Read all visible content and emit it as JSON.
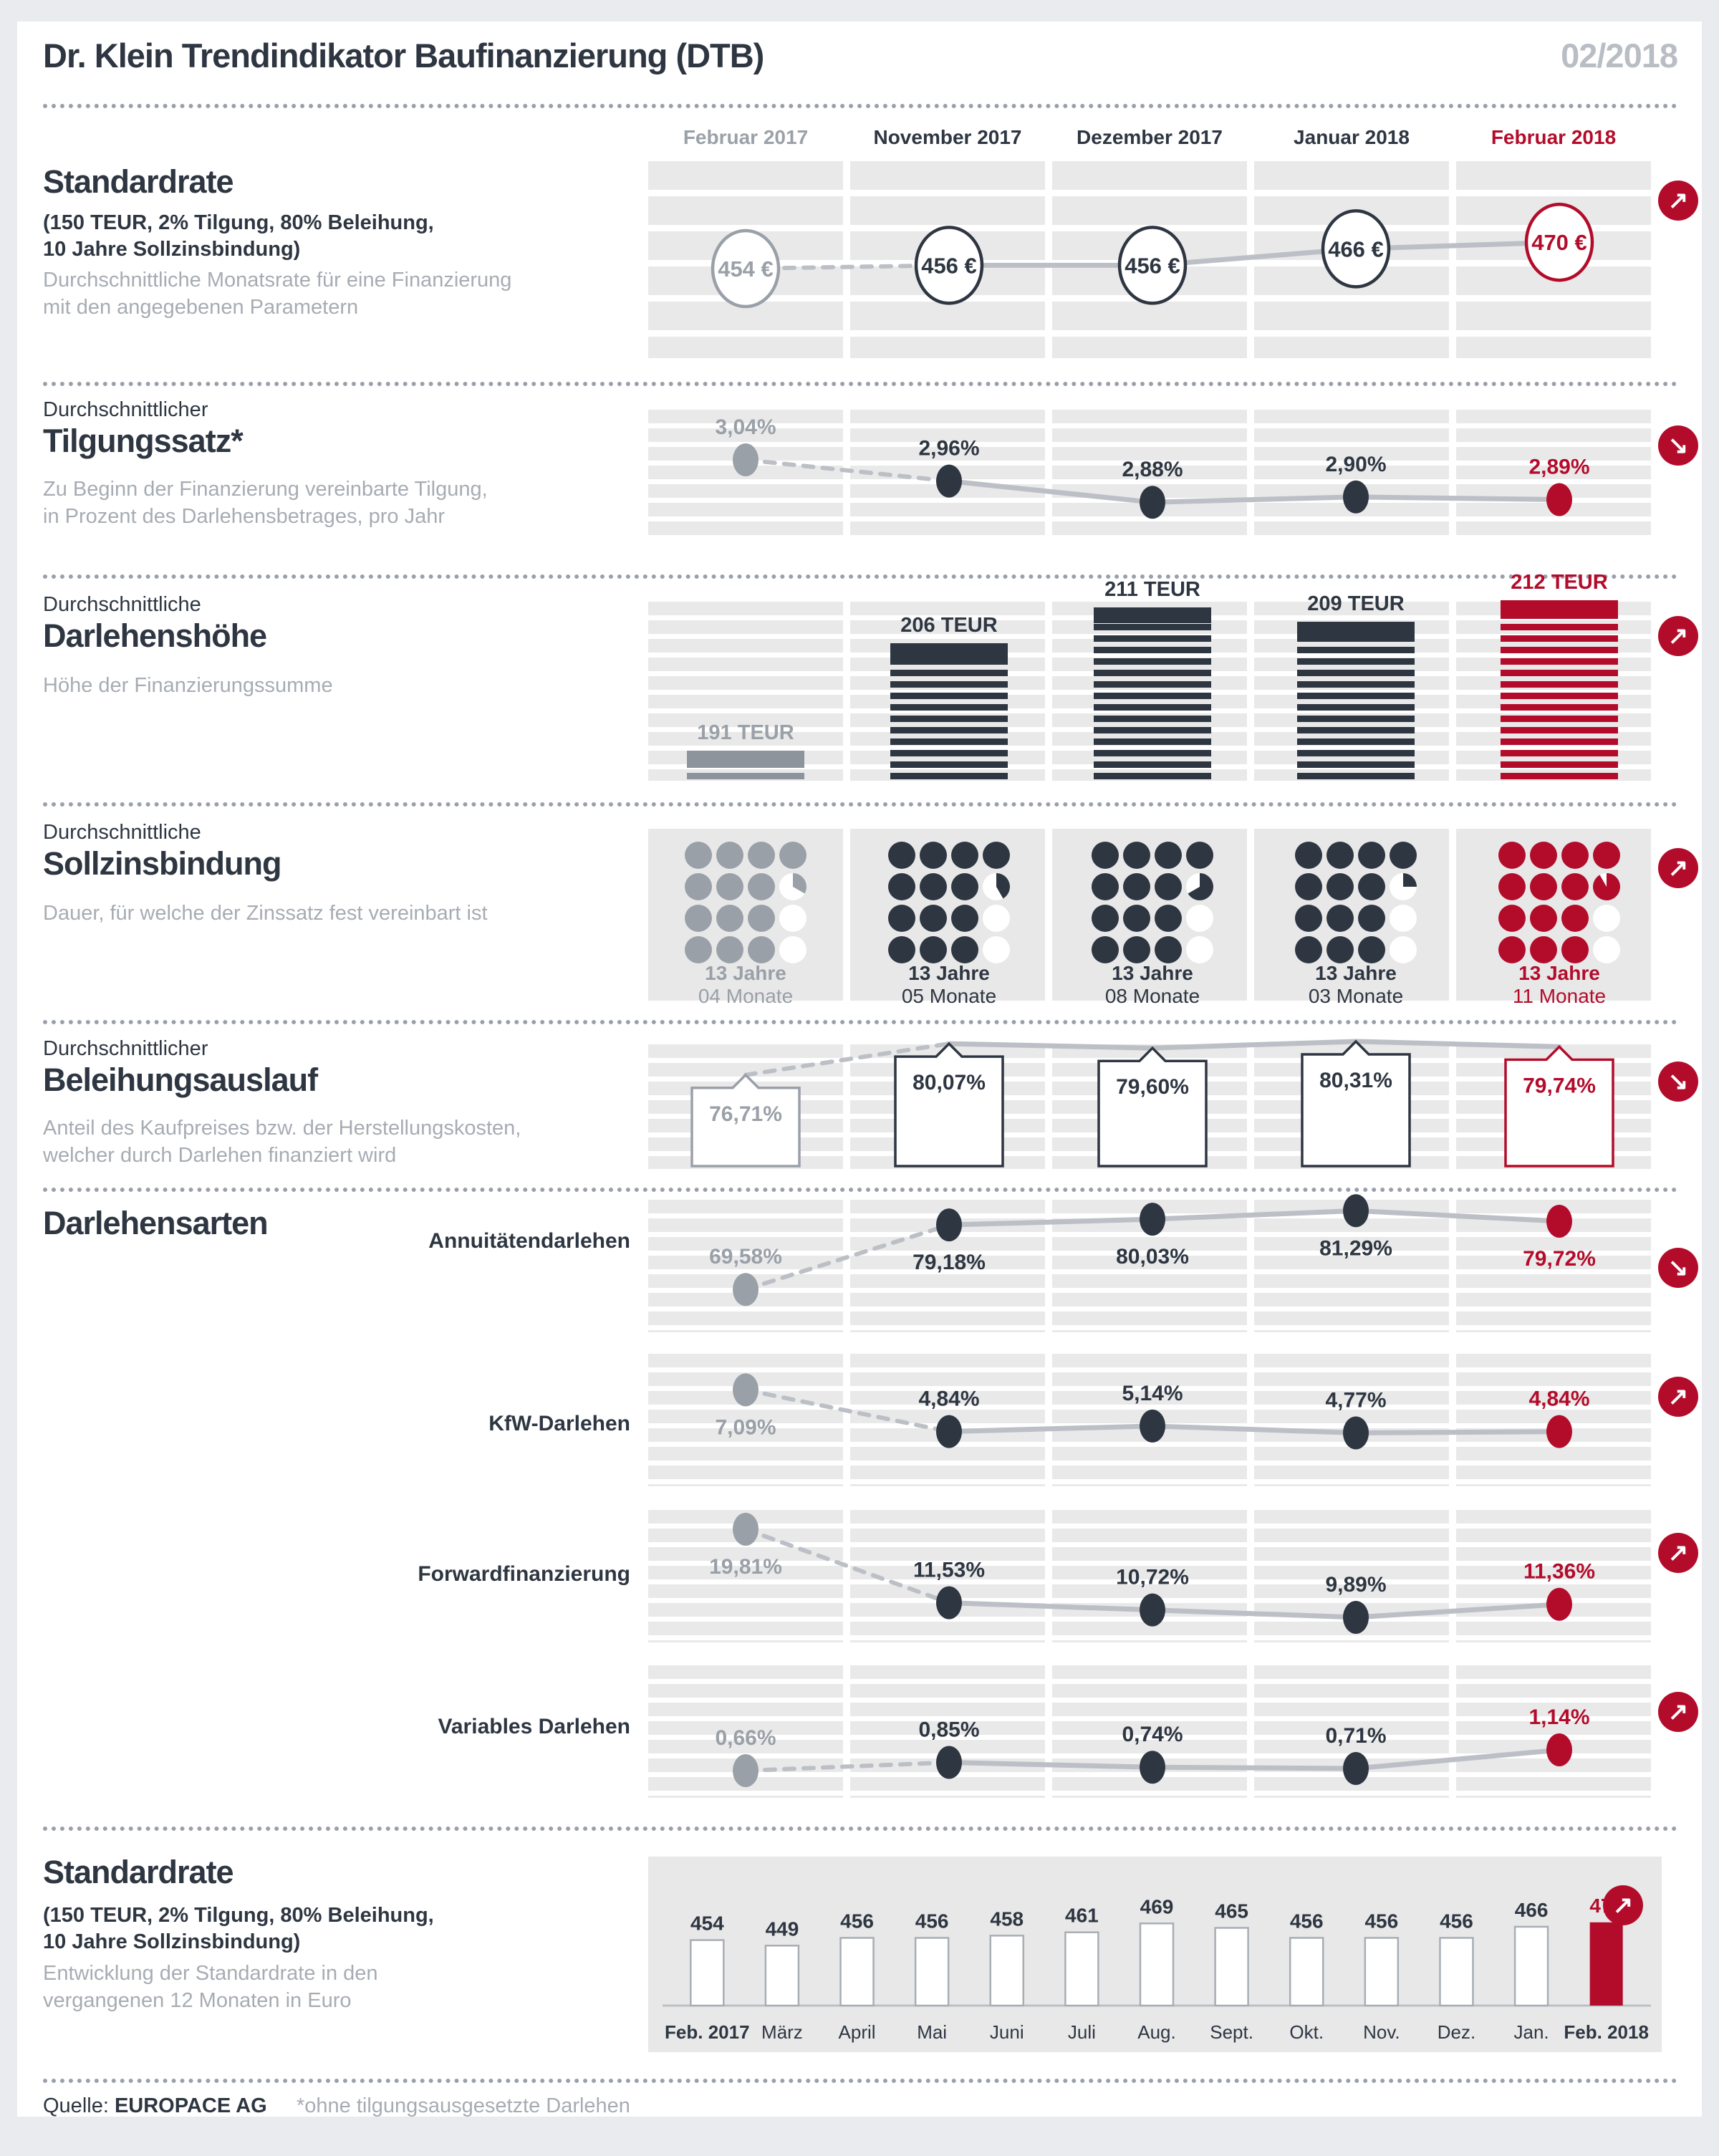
{
  "page": {
    "title": "Dr. Klein Trendindikator Baufinanzierung (DTB)",
    "issue": "02/2018"
  },
  "columns": [
    "Februar 2017",
    "November 2017",
    "Dezember 2017",
    "Januar 2018",
    "Februar 2018"
  ],
  "colors": {
    "dark": "#2e3642",
    "gray": "#9aa0a8",
    "red": "#b30c2b",
    "line": "#bcc0c6",
    "gray_bar": "#8e949c",
    "panel": "#e8e8e8"
  },
  "sections": {
    "standardrate": {
      "title": "Standardrate",
      "note_line1": "(150 TEUR, 2% Tilgung, 80% Beleihung,",
      "note_line2": "10 Jahre Sollzinsbindung)",
      "desc_line1": "Durchschnittliche Monatsrate für eine Finanzierung",
      "desc_line2": "mit den angegebenen Parametern"
    },
    "tilgungssatz": {
      "pretitle": "Durchschnittlicher",
      "title": "Tilgungssatz*",
      "desc_line1": "Zu Beginn der Finanzierung vereinbarte Tilgung,",
      "desc_line2": "in Prozent des Darlehensbetrages, pro Jahr"
    },
    "darlehenshoehe": {
      "pretitle": "Durchschnittliche",
      "title": "Darlehenshöhe",
      "desc_line1": "Höhe der Finanzierungssumme"
    },
    "sollzinsbindung": {
      "pretitle": "Durchschnittliche",
      "title": "Sollzinsbindung",
      "desc_line1": "Dauer, für welche der Zinssatz fest vereinbart ist"
    },
    "beleihungsauslauf": {
      "pretitle": "Durchschnittlicher",
      "title": "Beleihungsauslauf",
      "desc_line1": "Anteil des Kaufpreises bzw. der Herstellungskosten,",
      "desc_line2": "welcher durch Darlehen finanziert wird"
    },
    "darlehensarten": {
      "title": "Darlehensarten"
    },
    "standardrate12": {
      "title": "Standardrate",
      "note_line1": "(150 TEUR, 2% Tilgung, 80% Beleihung,",
      "note_line2": "10 Jahre Sollzinsbindung)",
      "desc_line1": "Entwicklung der Standardrate in den",
      "desc_line2": "vergangenen 12 Monaten in Euro"
    }
  },
  "footer": {
    "source_label": "Quelle:",
    "source_name": "EUROPACE AG",
    "footnote": "*ohne tilgungsausgesetzte Darlehen"
  },
  "chart_data": [
    {
      "id": "standardrate",
      "type": "line",
      "title": "Standardrate (monthly rate in EUR)",
      "categories": [
        "Februar 2017",
        "November 2017",
        "Dezember 2017",
        "Januar 2018",
        "Februar 2018"
      ],
      "values": [
        454,
        456,
        456,
        466,
        470
      ],
      "labels": [
        "454 €",
        "456 €",
        "456 €",
        "466 €",
        "470 €"
      ],
      "marker": "outlined-circle",
      "trend": "up",
      "unit": "EUR"
    },
    {
      "id": "tilgungssatz",
      "type": "line",
      "title": "Durchschnittlicher Tilgungssatz (%)",
      "categories": [
        "Februar 2017",
        "November 2017",
        "Dezember 2017",
        "Januar 2018",
        "Februar 2018"
      ],
      "values": [
        3.04,
        2.96,
        2.88,
        2.9,
        2.89
      ],
      "labels": [
        "3,04%",
        "2,96%",
        "2,88%",
        "2,90%",
        "2,89%"
      ],
      "label_pos": [
        "above",
        "above",
        "above",
        "above",
        "above"
      ],
      "trend": "down",
      "unit": "%"
    },
    {
      "id": "darlehenshoehe",
      "type": "bar",
      "title": "Durchschnittliche Darlehenshöhe (TEUR)",
      "categories": [
        "Februar 2017",
        "November 2017",
        "Dezember 2017",
        "Januar 2018",
        "Februar 2018"
      ],
      "values": [
        191,
        206,
        211,
        209,
        212
      ],
      "labels": [
        "191 TEUR",
        "206 TEUR",
        "211 TEUR",
        "209 TEUR",
        "212 TEUR"
      ],
      "trend": "up",
      "unit": "TEUR"
    },
    {
      "id": "sollzinsbindung",
      "type": "pictogram",
      "title": "Durchschnittliche Sollzinsbindung (Jahre/Monate)",
      "categories": [
        "Februar 2017",
        "November 2017",
        "Dezember 2017",
        "Januar 2018",
        "Februar 2018"
      ],
      "years": [
        13,
        13,
        13,
        13,
        13
      ],
      "months": [
        4,
        5,
        8,
        3,
        11
      ],
      "labels_line1": [
        "13 Jahre",
        "13 Jahre",
        "13 Jahre",
        "13 Jahre",
        "13 Jahre"
      ],
      "labels_line2": [
        "04 Monate",
        "05 Monate",
        "08 Monate",
        "03 Monate",
        "11 Monate"
      ],
      "trend": "up"
    },
    {
      "id": "beleihungsauslauf",
      "type": "line",
      "title": "Durchschnittlicher Beleihungsauslauf (%)",
      "categories": [
        "Februar 2017",
        "November 2017",
        "Dezember 2017",
        "Januar 2018",
        "Februar 2018"
      ],
      "values": [
        76.71,
        80.07,
        79.6,
        80.31,
        79.74
      ],
      "labels": [
        "76,71%",
        "80,07%",
        "79,60%",
        "80,31%",
        "79,74%"
      ],
      "marker": "notch-box",
      "trend": "down",
      "unit": "%"
    },
    {
      "id": "annuitaeten",
      "type": "line",
      "row_label": "Annuitätendarlehen",
      "categories": [
        "Februar 2017",
        "November 2017",
        "Dezember 2017",
        "Januar 2018",
        "Februar 2018"
      ],
      "values": [
        69.58,
        79.18,
        80.03,
        81.29,
        79.72
      ],
      "labels": [
        "69,58%",
        "79,18%",
        "80,03%",
        "81,29%",
        "79,72%"
      ],
      "label_pos": [
        "above",
        "below",
        "below",
        "below",
        "below"
      ],
      "trend": "down",
      "unit": "%"
    },
    {
      "id": "kfw",
      "type": "line",
      "row_label": "KfW-Darlehen",
      "categories": [
        "Februar 2017",
        "November 2017",
        "Dezember 2017",
        "Januar 2018",
        "Februar 2018"
      ],
      "values": [
        7.09,
        4.84,
        5.14,
        4.77,
        4.84
      ],
      "labels": [
        "7,09%",
        "4,84%",
        "5,14%",
        "4,77%",
        "4,84%"
      ],
      "label_pos": [
        "below",
        "above",
        "above",
        "above",
        "above"
      ],
      "trend": "up",
      "unit": "%"
    },
    {
      "id": "forward",
      "type": "line",
      "row_label": "Forwardfinanzierung",
      "categories": [
        "Februar 2017",
        "November 2017",
        "Dezember 2017",
        "Januar 2018",
        "Februar 2018"
      ],
      "values": [
        19.81,
        11.53,
        10.72,
        9.89,
        11.36
      ],
      "labels": [
        "19,81%",
        "11,53%",
        "10,72%",
        "9,89%",
        "11,36%"
      ],
      "label_pos": [
        "below",
        "above",
        "above",
        "above",
        "above"
      ],
      "trend": "up",
      "unit": "%"
    },
    {
      "id": "variables",
      "type": "line",
      "row_label": "Variables Darlehen",
      "categories": [
        "Februar 2017",
        "November 2017",
        "Dezember 2017",
        "Januar 2018",
        "Februar 2018"
      ],
      "values": [
        0.66,
        0.85,
        0.74,
        0.71,
        1.14
      ],
      "labels": [
        "0,66%",
        "0,85%",
        "0,74%",
        "0,71%",
        "1,14%"
      ],
      "label_pos": [
        "above",
        "above",
        "above",
        "above",
        "above"
      ],
      "trend": "up",
      "unit": "%"
    },
    {
      "id": "standardrate12",
      "type": "bar",
      "title": "Standardrate, vergangene 12 Monate (EUR)",
      "categories": [
        "Feb. 2017",
        "März",
        "April",
        "Mai",
        "Juni",
        "Juli",
        "Aug.",
        "Sept.",
        "Okt.",
        "Nov.",
        "Dez.",
        "Jan.",
        "Feb. 2018"
      ],
      "values": [
        454,
        449,
        456,
        456,
        458,
        461,
        469,
        465,
        456,
        456,
        456,
        466,
        470
      ],
      "trend": "up",
      "unit": "EUR"
    }
  ]
}
